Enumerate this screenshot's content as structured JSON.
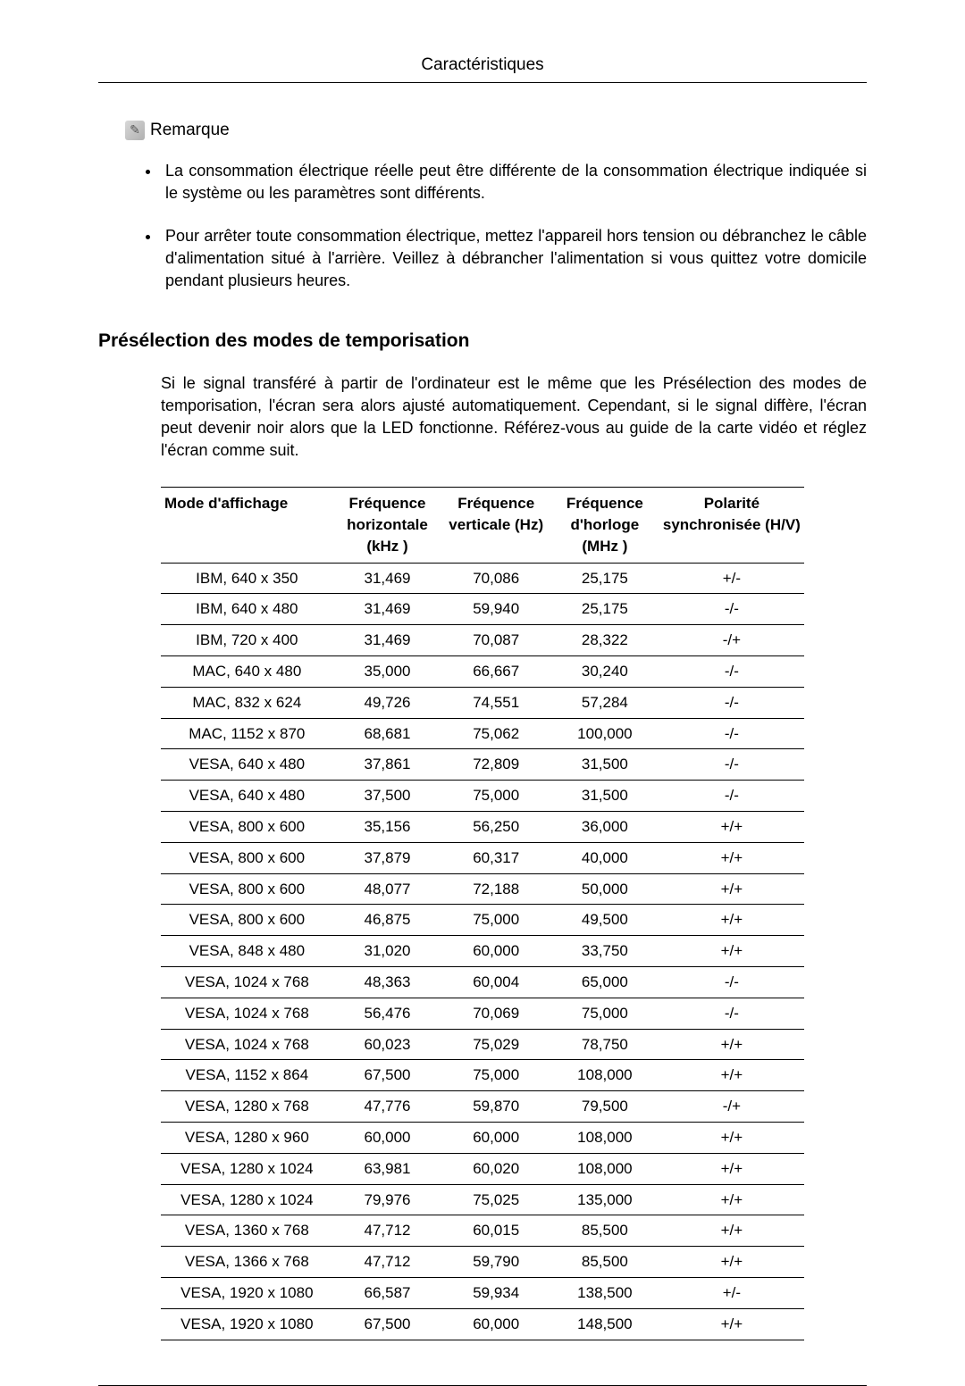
{
  "page_header": "Caractéristiques",
  "remarque_label": "Remarque",
  "bullets": [
    "La consommation électrique réelle peut être différente de la consommation électrique indiquée si le système ou les paramètres sont différents.",
    "Pour arrêter toute consommation électrique, mettez l'appareil hors tension ou débranchez le câble d'alimentation situé à l'arrière. Veillez à débrancher l'alimentation si vous quittez votre domicile pendant plusieurs heures."
  ],
  "section_heading": "Présélection des modes de temporisation",
  "section_para": "Si le signal transféré à partir de l'ordinateur est le même que les Présélection des modes de temporisation, l'écran sera alors ajusté automatiquement. Cependant, si le signal diffère, l'écran peut devenir noir alors que la LED fonctionne. Référez-vous au guide de la carte vidéo et réglez l'écran comme suit.",
  "table": {
    "columns": [
      "Mode d'affichage",
      "Fréquence horizontale (kHz )",
      "Fréquence verticale (Hz)",
      "Fréquence d'horloge (MHz )",
      "Polarité synchronisée (H/V)"
    ],
    "column_widths": [
      "190px",
      "120px",
      "120px",
      "120px",
      "160px"
    ],
    "rows": [
      [
        "IBM, 640 x 350",
        "31,469",
        "70,086",
        "25,175",
        "+/-"
      ],
      [
        "IBM, 640 x 480",
        "31,469",
        "59,940",
        "25,175",
        "-/-"
      ],
      [
        "IBM, 720 x 400",
        "31,469",
        "70,087",
        "28,322",
        "-/+"
      ],
      [
        "MAC, 640 x 480",
        "35,000",
        "66,667",
        "30,240",
        "-/-"
      ],
      [
        "MAC, 832 x 624",
        "49,726",
        "74,551",
        "57,284",
        "-/-"
      ],
      [
        "MAC, 1152 x 870",
        "68,681",
        "75,062",
        "100,000",
        "-/-"
      ],
      [
        "VESA, 640 x 480",
        "37,861",
        "72,809",
        "31,500",
        "-/-"
      ],
      [
        "VESA, 640 x 480",
        "37,500",
        "75,000",
        "31,500",
        "-/-"
      ],
      [
        "VESA, 800 x 600",
        "35,156",
        "56,250",
        "36,000",
        "+/+"
      ],
      [
        "VESA, 800 x 600",
        "37,879",
        "60,317",
        "40,000",
        "+/+"
      ],
      [
        "VESA, 800 x 600",
        "48,077",
        "72,188",
        "50,000",
        "+/+"
      ],
      [
        "VESA, 800 x 600",
        "46,875",
        "75,000",
        "49,500",
        "+/+"
      ],
      [
        "VESA, 848 x 480",
        "31,020",
        "60,000",
        "33,750",
        "+/+"
      ],
      [
        "VESA, 1024 x 768",
        "48,363",
        "60,004",
        "65,000",
        "-/-"
      ],
      [
        "VESA, 1024 x 768",
        "56,476",
        "70,069",
        "75,000",
        "-/-"
      ],
      [
        "VESA, 1024 x 768",
        "60,023",
        "75,029",
        "78,750",
        "+/+"
      ],
      [
        "VESA, 1152 x 864",
        "67,500",
        "75,000",
        "108,000",
        "+/+"
      ],
      [
        "VESA, 1280 x 768",
        "47,776",
        "59,870",
        "79,500",
        "-/+"
      ],
      [
        "VESA, 1280 x 960",
        "60,000",
        "60,000",
        "108,000",
        "+/+"
      ],
      [
        "VESA, 1280 x 1024",
        "63,981",
        "60,020",
        "108,000",
        "+/+"
      ],
      [
        "VESA, 1280 x 1024",
        "79,976",
        "75,025",
        "135,000",
        "+/+"
      ],
      [
        "VESA, 1360 x 768",
        "47,712",
        "60,015",
        "85,500",
        "+/+"
      ],
      [
        "VESA, 1366 x 768",
        "47,712",
        "59,790",
        "85,500",
        "+/+"
      ],
      [
        "VESA, 1920 x 1080",
        "66,587",
        "59,934",
        "138,500",
        "+/-"
      ],
      [
        "VESA, 1920 x 1080",
        "67,500",
        "60,000",
        "148,500",
        "+/+"
      ]
    ]
  }
}
